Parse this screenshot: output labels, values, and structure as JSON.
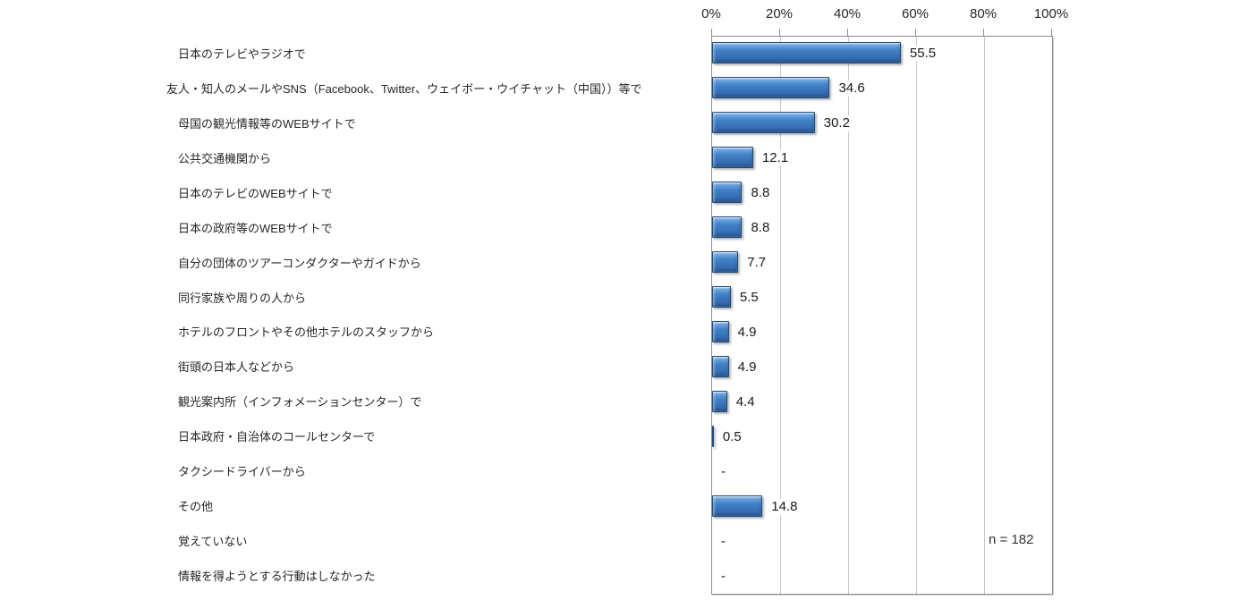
{
  "chart_data": {
    "type": "bar",
    "orientation": "horizontal",
    "title": "",
    "categories": [
      "日本のテレビやラジオで",
      "友人・知人のメールやSNS（Facebook、Twitter、ウェイボー・ウイチャット（中国））等で",
      "母国の観光情報等のWEBサイトで",
      "公共交通機関から",
      "日本のテレビのWEBサイトで",
      "日本の政府等のWEBサイトで",
      "自分の団体のツアーコンダクターやガイドから",
      "同行家族や周りの人から",
      "ホテルのフロントやその他ホテルのスタッフから",
      "街頭の日本人などから",
      "観光案内所（インフォメーションセンター）で",
      "日本政府・自治体のコールセンターで",
      "タクシードライバーから",
      "その他",
      "覚えていない",
      "情報を得ようとする行動はしなかった"
    ],
    "values": [
      55.5,
      34.6,
      30.2,
      12.1,
      8.8,
      8.8,
      7.7,
      5.5,
      4.9,
      4.9,
      4.4,
      0.5,
      null,
      14.8,
      null,
      null
    ],
    "value_labels": [
      "55.5",
      "34.6",
      "30.2",
      "12.1",
      "8.8",
      "8.8",
      "7.7",
      "5.5",
      "4.9",
      "4.9",
      "4.4",
      "0.5",
      "-",
      "14.8",
      "-",
      "-"
    ],
    "x_ticks": [
      "0%",
      "20%",
      "40%",
      "60%",
      "80%",
      "100%"
    ],
    "xlim": [
      0,
      100
    ],
    "grid": true,
    "legend": "none",
    "sample_note": "n = 182",
    "colors": {
      "bar": "#3E7CC1",
      "bar_highlight": "#A3C8F0",
      "bar_border": "#1E4A78",
      "gridline": "#C6C6C6",
      "plot_border": "#8C8C8C",
      "text": "#262626"
    }
  }
}
